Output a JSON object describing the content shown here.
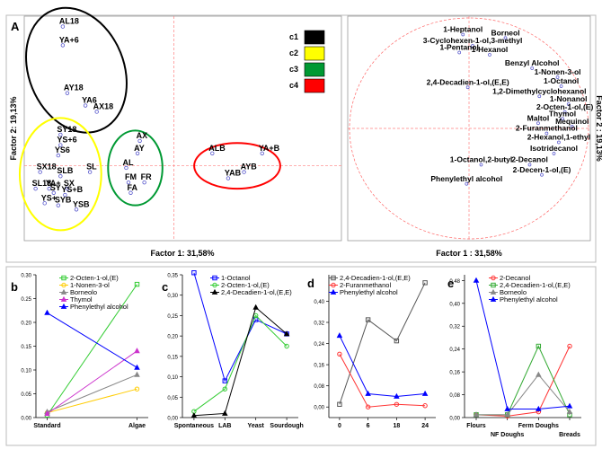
{
  "figure": {
    "panel_labels": [
      "A",
      "b",
      "c",
      "d",
      "e"
    ]
  },
  "chart_data": [
    {
      "panel": "A-scores",
      "type": "scatter",
      "xlabel": "Factor 1: 31,58%",
      "ylabel": "Factor 2: 19,13%",
      "legend": [
        "c1",
        "c2",
        "c3",
        "c4"
      ],
      "legend_colors": [
        "#000000",
        "#ffff00",
        "#009933",
        "#ff0000"
      ],
      "clusters": [
        {
          "name": "c1",
          "color": "#000000",
          "points": [
            {
              "label": "AL18",
              "x": -2.45,
              "y": 3.35
            },
            {
              "label": "YA+6",
              "x": -2.45,
              "y": 2.9
            },
            {
              "label": "AY18",
              "x": -2.35,
              "y": 1.75
            },
            {
              "label": "YA6",
              "x": -1.95,
              "y": 1.45
            },
            {
              "label": "AX18",
              "x": -1.7,
              "y": 1.3
            }
          ]
        },
        {
          "name": "c2",
          "color": "#ffff00",
          "points": [
            {
              "label": "SY18",
              "x": -2.5,
              "y": 0.75
            },
            {
              "label": "YS+6",
              "x": -2.5,
              "y": 0.5
            },
            {
              "label": "YS6",
              "x": -2.55,
              "y": 0.25
            },
            {
              "label": "SL",
              "x": -1.85,
              "y": -0.15
            },
            {
              "label": "SX18",
              "x": -2.95,
              "y": -0.15
            },
            {
              "label": "SLB",
              "x": -2.5,
              "y": -0.25
            },
            {
              "label": "SL18",
              "x": -3.05,
              "y": -0.55
            },
            {
              "label": "YA+",
              "x": -2.75,
              "y": -0.55
            },
            {
              "label": "SX",
              "x": -2.35,
              "y": -0.55
            },
            {
              "label": "SY",
              "x": -2.65,
              "y": -0.65
            },
            {
              "label": "YS+B",
              "x": -2.4,
              "y": -0.7
            },
            {
              "label": "YS+",
              "x": -2.85,
              "y": -0.9
            },
            {
              "label": "SYB",
              "x": -2.55,
              "y": -0.95
            },
            {
              "label": "YSB",
              "x": -2.15,
              "y": -1.05
            }
          ]
        },
        {
          "name": "c3",
          "color": "#009933",
          "points": [
            {
              "label": "AX",
              "x": -0.75,
              "y": 0.6
            },
            {
              "label": "AY",
              "x": -0.8,
              "y": 0.3
            },
            {
              "label": "AL",
              "x": -1.05,
              "y": -0.05
            },
            {
              "label": "FM",
              "x": -1.0,
              "y": -0.4
            },
            {
              "label": "FR",
              "x": -0.65,
              "y": -0.4
            },
            {
              "label": "FA",
              "x": -0.95,
              "y": -0.65
            }
          ]
        },
        {
          "name": "c4",
          "color": "#ff0000",
          "points": [
            {
              "label": "ALB",
              "x": 0.85,
              "y": 0.3
            },
            {
              "label": "YA+B",
              "x": 1.95,
              "y": 0.3
            },
            {
              "label": "AYB",
              "x": 1.55,
              "y": -0.15
            },
            {
              "label": "YAB",
              "x": 1.2,
              "y": -0.3
            }
          ]
        }
      ]
    },
    {
      "panel": "A-loadings",
      "type": "scatter",
      "xlabel": "Factor 1 : 31,58%",
      "ylabel": "Factor 2 : 19,13%",
      "variables": [
        {
          "label": "1-Heptanol",
          "x": -0.05,
          "y": 0.86
        },
        {
          "label": "Borneol",
          "x": 0.3,
          "y": 0.83
        },
        {
          "label": "3-Cyclohexen-1-ol,3-methyl",
          "x": 0.03,
          "y": 0.76
        },
        {
          "label": "1-Pentanol",
          "x": -0.08,
          "y": 0.7
        },
        {
          "label": "1-Hexanol",
          "x": 0.17,
          "y": 0.68
        },
        {
          "label": "Benzyl Alcohol",
          "x": 0.52,
          "y": 0.56
        },
        {
          "label": "1-Nonen-3-ol",
          "x": 0.73,
          "y": 0.48
        },
        {
          "label": "2,4-Decadien-1-ol,(E,E)",
          "x": -0.01,
          "y": 0.39
        },
        {
          "label": "1-Octanol",
          "x": 0.76,
          "y": 0.4
        },
        {
          "label": "1,2-Dimethylcyclohexanol",
          "x": 0.58,
          "y": 0.31
        },
        {
          "label": "1-Nonanol",
          "x": 0.82,
          "y": 0.24
        },
        {
          "label": "2-Octen-1-ol,(E)",
          "x": 0.79,
          "y": 0.17
        },
        {
          "label": "Thymol",
          "x": 0.77,
          "y": 0.11
        },
        {
          "label": "Maltol",
          "x": 0.57,
          "y": 0.07
        },
        {
          "label": "Mequinol",
          "x": 0.85,
          "y": 0.04
        },
        {
          "label": "2-Furanmethanol",
          "x": 0.64,
          "y": -0.02
        },
        {
          "label": "2-Hexanol,1-ethyl",
          "x": 0.74,
          "y": -0.1
        },
        {
          "label": "Isotridecanol",
          "x": 0.7,
          "y": -0.2
        },
        {
          "label": "1-Octanol,2-butyl",
          "x": 0.1,
          "y": -0.3
        },
        {
          "label": "2-Decanol",
          "x": 0.5,
          "y": -0.3
        },
        {
          "label": "2-Decen-1-ol,(E)",
          "x": 0.6,
          "y": -0.39
        },
        {
          "label": "Phenylethyl alcohol",
          "x": -0.02,
          "y": -0.47
        }
      ]
    },
    {
      "panel": "b",
      "type": "line",
      "categories": [
        "Standard",
        "Algae"
      ],
      "ylim": [
        0.0,
        0.3
      ],
      "yticks": [
        "0.00",
        "0.05",
        "0.10",
        "0.15",
        "0.20",
        "0.25",
        "0.30"
      ],
      "series": [
        {
          "name": "2-Octen-1-ol,(E)",
          "color": "#33cc33",
          "marker": "square",
          "values": [
            0.005,
            0.28
          ]
        },
        {
          "name": "1-Nonen-3-ol",
          "color": "#ffcc00",
          "marker": "circle",
          "values": [
            0.01,
            0.06
          ]
        },
        {
          "name": "Borneolo",
          "color": "#888888",
          "marker": "triangle",
          "values": [
            0.012,
            0.09
          ]
        },
        {
          "name": "Thymol",
          "color": "#cc33cc",
          "marker": "triangle",
          "values": [
            0.008,
            0.14
          ]
        },
        {
          "name": "Phenylethyl alcohol",
          "color": "#0000ff",
          "marker": "triangle",
          "values": [
            0.22,
            0.105
          ]
        }
      ]
    },
    {
      "panel": "c",
      "type": "line",
      "categories": [
        "Spontaneous",
        "LAB",
        "Yeast",
        "Sourdough"
      ],
      "ylim": [
        0.0,
        0.35
      ],
      "yticks": [
        "0,00",
        "0,05",
        "0,10",
        "0,15",
        "0,20",
        "0,25",
        "0,30",
        "0,35"
      ],
      "series": [
        {
          "name": "1-Octanol",
          "color": "#0000ff",
          "marker": "square",
          "values": [
            0.355,
            0.09,
            0.24,
            0.205
          ]
        },
        {
          "name": "2-Octen-1-ol,(E)",
          "color": "#33cc33",
          "marker": "circle",
          "values": [
            0.015,
            0.07,
            0.25,
            0.175
          ]
        },
        {
          "name": "2,4-Decadien-1-ol,(E,E)",
          "color": "#000000",
          "marker": "triangle",
          "values": [
            0.005,
            0.01,
            0.27,
            0.205
          ]
        }
      ]
    },
    {
      "panel": "d",
      "type": "line",
      "categories": [
        "0",
        "6",
        "18",
        "24"
      ],
      "ylim": [
        -0.04,
        0.5
      ],
      "yticks": [
        "0,00",
        "0,08",
        "0,16",
        "0,24",
        "0,32",
        "0,40"
      ],
      "series": [
        {
          "name": "2,4-Decadien-1-ol,(E,E)",
          "color": "#555555",
          "marker": "square",
          "values": [
            0.01,
            0.33,
            0.25,
            0.47
          ]
        },
        {
          "name": "2-Furanmethanol",
          "color": "#ff3333",
          "marker": "circle",
          "values": [
            0.2,
            0.0,
            0.01,
            0.005
          ]
        },
        {
          "name": "Phenylethyl alcohol",
          "color": "#0000ff",
          "marker": "triangle",
          "values": [
            0.27,
            0.05,
            0.04,
            0.05
          ]
        }
      ]
    },
    {
      "panel": "e",
      "type": "line",
      "categories": [
        "Flours",
        "NF Doughs",
        "Ferm Doughs",
        "Breads"
      ],
      "ylim": [
        0.0,
        0.5
      ],
      "yticks": [
        "0,00",
        "0,08",
        "0,16",
        "0,24",
        "0,32",
        "0,40",
        "0,48"
      ],
      "series": [
        {
          "name": "2-Decanol",
          "color": "#ff3333",
          "marker": "circle",
          "values": [
            0.01,
            0.005,
            0.02,
            0.25
          ]
        },
        {
          "name": "2,4-Decadien-1-ol,(E,E)",
          "color": "#33aa33",
          "marker": "square",
          "values": [
            0.01,
            0.01,
            0.25,
            0.01
          ]
        },
        {
          "name": "Borneolo",
          "color": "#888888",
          "marker": "triangle",
          "values": [
            0.01,
            0.01,
            0.15,
            0.02
          ]
        },
        {
          "name": "Phenylethyl alcohol",
          "color": "#0000ff",
          "marker": "triangle",
          "values": [
            0.48,
            0.03,
            0.03,
            0.04
          ]
        }
      ]
    }
  ]
}
